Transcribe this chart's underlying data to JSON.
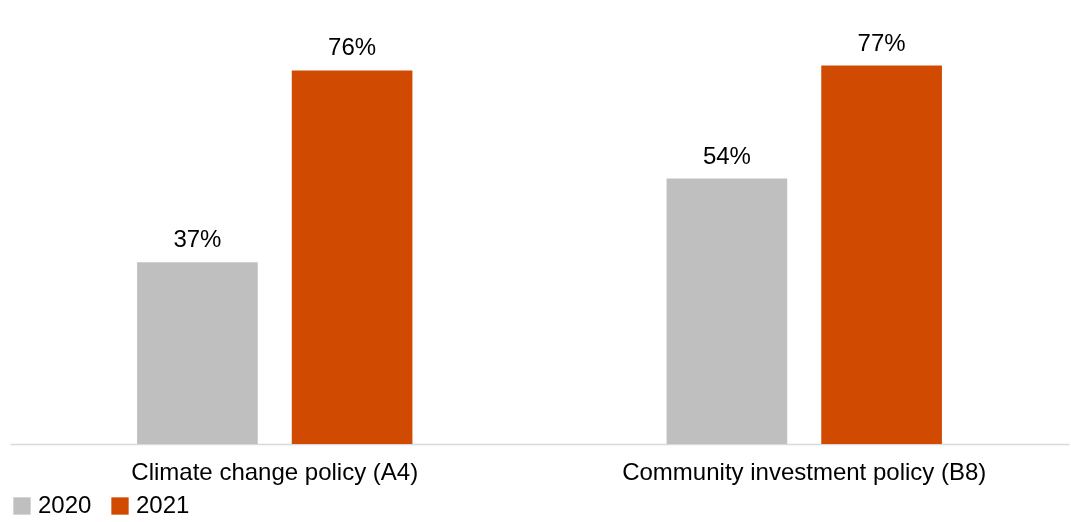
{
  "chart_data": {
    "type": "bar",
    "categories": [
      "Climate change policy (A4)",
      "Community investment policy (B8)"
    ],
    "series": [
      {
        "name": "2020",
        "color": "#bfbfbf",
        "values": [
          37,
          54
        ],
        "value_labels": [
          "37%",
          "54%"
        ]
      },
      {
        "name": "2021",
        "color": "#d04a02",
        "values": [
          76,
          77
        ],
        "value_labels": [
          "76%",
          "77%"
        ]
      }
    ],
    "legend": "bottom"
  }
}
